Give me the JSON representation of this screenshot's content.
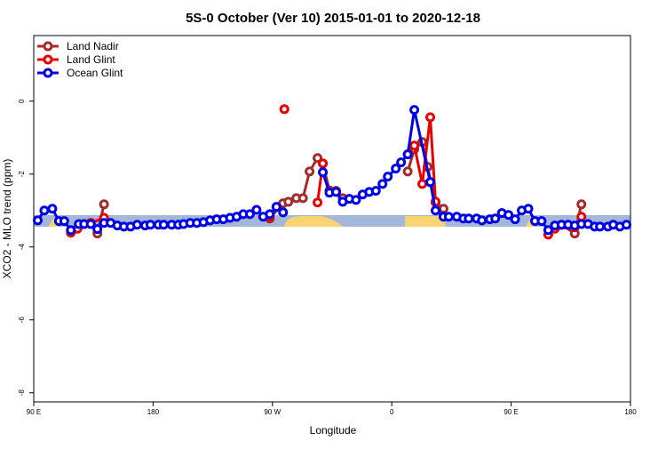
{
  "chart_data": {
    "type": "line",
    "title": "5S-0 October (Ver 10)   2015-01-01 to 2020-12-18",
    "x_label": "Longitude",
    "y_label": "XCO2 - MLO trend (ppm)",
    "xlim": [
      90,
      540
    ],
    "xticks": [
      {
        "value": 90,
        "label": "90 E"
      },
      {
        "value": 180,
        "label": "180"
      },
      {
        "value": 270,
        "label": "90 W"
      },
      {
        "value": 360,
        "label": "0"
      },
      {
        "value": 450,
        "label": "90 E"
      },
      {
        "value": 540,
        "label": "180"
      }
    ],
    "ylim": [
      -8.25,
      1.8
    ],
    "yticks": [
      0,
      -2,
      -4,
      -6,
      -8
    ],
    "legend": "top-left",
    "series": [
      {
        "name": "Land Nadir",
        "color": "#a52a2a",
        "x": [
          133,
          138,
          143,
          200,
          268,
          278,
          282,
          288,
          293,
          298,
          304,
          308,
          313,
          318,
          323,
          340,
          372,
          377,
          383,
          387,
          393,
          399,
          450,
          488,
          498,
          503
        ],
        "values": [
          -3.34,
          -3.63,
          -2.83,
          null,
          -3.22,
          -2.8,
          -2.76,
          -2.66,
          -2.66,
          -1.93,
          -1.56,
          -1.71,
          -2.45,
          -2.46,
          -2.66,
          null,
          -1.93,
          -1.32,
          -1.12,
          -1.8,
          -2.78,
          -2.95,
          null,
          -3.39,
          -3.63,
          -2.83
        ]
      },
      {
        "name": "Land Glint",
        "color": "#e60000",
        "x": [
          118,
          123,
          128,
          133,
          143,
          200,
          268,
          273,
          279,
          290,
          304,
          308,
          340,
          372,
          377,
          383,
          389,
          393,
          450,
          478,
          483,
          498,
          503
        ],
        "values": [
          -3.61,
          -3.5,
          -3.37,
          -3.34,
          -3.2,
          null,
          -3.17,
          null,
          -0.22,
          null,
          -2.78,
          -1.71,
          null,
          -1.46,
          -1.22,
          -2.27,
          -0.44,
          -2.76,
          null,
          -3.66,
          -3.5,
          -3.46,
          -3.17
        ]
      },
      {
        "name": "Ocean Glint",
        "color": "#0000e6",
        "x": [
          93,
          98,
          104,
          109,
          113,
          118,
          124,
          128,
          133,
          138,
          143,
          148,
          153,
          158,
          163,
          168,
          174,
          178,
          184,
          188,
          194,
          199,
          203,
          208,
          213,
          218,
          223,
          228,
          233,
          238,
          243,
          248,
          253,
          258,
          263,
          268,
          273,
          278,
          293,
          308,
          313,
          318,
          323,
          328,
          333,
          338,
          343,
          348,
          353,
          357,
          363,
          367,
          372,
          377,
          389,
          393,
          399,
          403,
          409,
          414,
          418,
          424,
          428,
          434,
          438,
          443,
          448,
          453,
          458,
          463,
          468,
          473,
          478,
          483,
          488,
          493,
          498,
          503,
          508,
          513,
          517,
          523,
          527,
          532,
          537
        ],
        "values": [
          -3.27,
          -3.0,
          -2.95,
          -3.29,
          -3.29,
          -3.54,
          -3.37,
          -3.37,
          -3.37,
          -3.51,
          -3.34,
          -3.34,
          -3.41,
          -3.44,
          -3.44,
          -3.39,
          -3.41,
          -3.39,
          -3.39,
          -3.39,
          -3.39,
          -3.39,
          -3.37,
          -3.34,
          -3.34,
          -3.32,
          -3.27,
          -3.24,
          -3.24,
          -3.2,
          -3.17,
          -3.1,
          -3.1,
          -2.98,
          -3.17,
          -3.1,
          -2.9,
          -3.05,
          null,
          -1.95,
          -2.51,
          -2.49,
          -2.76,
          -2.68,
          -2.71,
          -2.56,
          -2.49,
          -2.46,
          -2.27,
          -2.07,
          -1.85,
          -1.68,
          -1.46,
          -0.24,
          -2.22,
          -3.0,
          -3.17,
          -3.17,
          -3.17,
          -3.22,
          -3.22,
          -3.22,
          -3.27,
          -3.24,
          -3.22,
          -3.07,
          -3.12,
          -3.24,
          -3.0,
          -2.95,
          -3.29,
          -3.29,
          -3.54,
          -3.41,
          -3.39,
          -3.39,
          -3.41,
          -3.37,
          -3.37,
          -3.44,
          -3.44,
          -3.44,
          -3.39,
          -3.44,
          -3.39
        ]
      }
    ]
  }
}
